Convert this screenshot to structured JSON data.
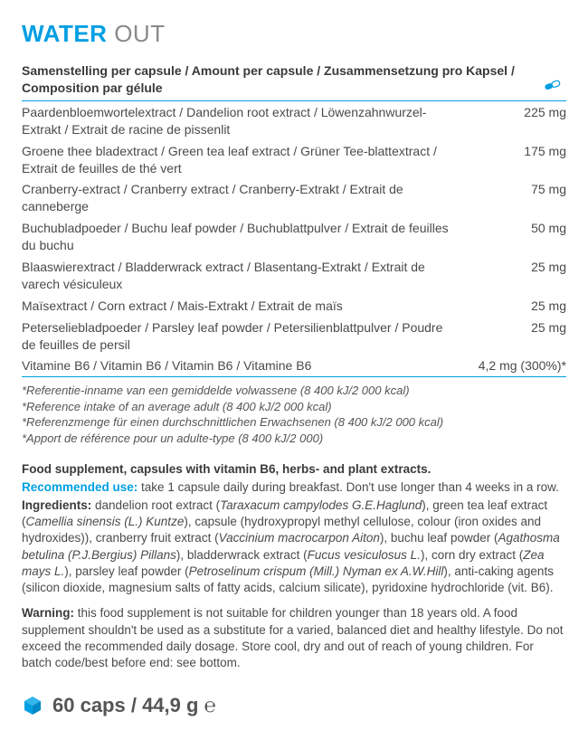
{
  "title": {
    "bold": "WATER",
    "light": "OUT"
  },
  "composition_header": "Samenstelling per capsule / Amount per capsule / Zusammensetzung pro Kapsel / Composition par gélule",
  "rows": [
    {
      "name": "Paardenbloemwortelextract / Dandelion root extract / Löwenzahnwurzel-Extrakt / Extrait de racine de pissenlit",
      "amount": "225 mg"
    },
    {
      "name": "Groene thee bladextract / Green tea leaf extract / Grüner Tee-blattextract / Extrait de feuilles de thé vert",
      "amount": "175 mg"
    },
    {
      "name": "Cranberry-extract / Cranberry extract / Cranberry-Extrakt / Extrait de canneberge",
      "amount": "75 mg"
    },
    {
      "name": "Buchubladpoeder / Buchu leaf powder / Buchublattpulver / Extrait de feuilles du buchu",
      "amount": "50 mg"
    },
    {
      "name": "Blaaswierextract / Bladderwrack extract / Blasentang-Extrakt / Extrait de varech vésiculeux",
      "amount": "25 mg"
    },
    {
      "name": "Maïsextract / Corn extract / Mais-Extrakt / Extrait de maïs",
      "amount": "25 mg"
    },
    {
      "name": "Peterseliebladpoeder / Parsley leaf powder / Petersilienblattpulver / Poudre de feuilles de persil",
      "amount": "25 mg"
    },
    {
      "name": "Vitamine B6 / Vitamin B6 / Vitamin B6 / Vitamine B6",
      "amount": "4,2 mg (300%)*"
    }
  ],
  "footnotes": [
    "*Referentie-inname van een gemiddelde volwassene (8 400 kJ/2 000 kcal)",
    "*Reference intake of an average adult (8 400 kJ/2 000 kcal)",
    "*Referenzmenge für einen durchschnittlichen Erwachsenen (8 400 kJ/2 000 kcal)",
    "*Apport de référence pour un adulte-type (8 400 kJ/2 000)"
  ],
  "supplement_title": "Food supplement, capsules with vitamin B6, herbs- and plant extracts.",
  "recommended": {
    "label": "Recommended use:",
    "text": " take 1 capsule daily during breakfast. Don't use longer than 4 weeks in a row."
  },
  "ingredients": {
    "label": "Ingredients:",
    "parts": [
      {
        "t": " dandelion root extract ("
      },
      {
        "t": "Taraxacum campylodes G.E.Haglund",
        "i": true
      },
      {
        "t": "), green tea leaf extract ("
      },
      {
        "t": "Camellia sinensis (L.) Kuntze",
        "i": true
      },
      {
        "t": "), capsule (hydroxypropyl methyl cellulose, colour (iron oxides and hydroxides)), cranberry fruit extract ("
      },
      {
        "t": "Vaccinium macrocarpon Aiton",
        "i": true
      },
      {
        "t": "), buchu leaf powder ("
      },
      {
        "t": "Agathosma betulina (P.J.Bergius) Pillans",
        "i": true
      },
      {
        "t": "), bladderwrack extract ("
      },
      {
        "t": "Fucus vesiculosus L.",
        "i": true
      },
      {
        "t": "), corn dry extract ("
      },
      {
        "t": "Zea mays L.",
        "i": true
      },
      {
        "t": "), parsley leaf powder ("
      },
      {
        "t": "Petroselinum crispum (Mill.) Nyman ex A.W.Hill",
        "i": true
      },
      {
        "t": "), anti-caking agents (silicon dioxide, magnesium salts of fatty acids, calcium silicate), pyridoxine hydrochloride (vit. B6)."
      }
    ]
  },
  "warning": {
    "label": "Warning:",
    "text": " this food supplement is not suitable for children younger than 18 years old. A food supplement shouldn't be used as a substitute for a varied, balanced diet and healthy lifestyle. Do not exceed the recommended daily dosage. Store cool, dry and out of reach of young children. For batch code/best before end: see bottom."
  },
  "bottom": "60 caps / 44,9 g ℮",
  "colors": {
    "accent": "#009fe3",
    "text": "#4a4a4a"
  }
}
